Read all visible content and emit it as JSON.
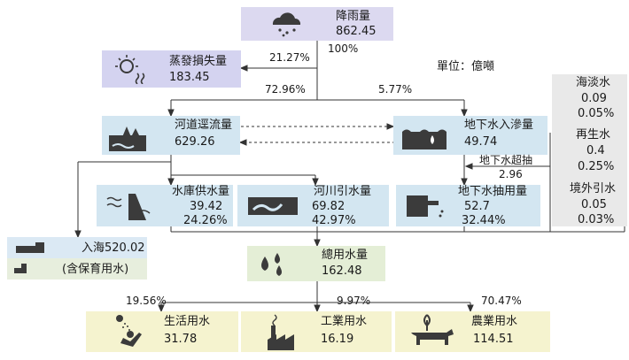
{
  "unit": "單位：億噸",
  "colors": {
    "rain": "#dcd9f0",
    "evap": "#d4d3f0",
    "blue": "#d3e6f1",
    "ground": "#d3e6f1",
    "gray": "#e9e9e9",
    "sea": "#dbe9f4",
    "sea2": "#e7eedd",
    "total": "#e4eed6",
    "use": "#f5f3cf",
    "icon": "#3b3b3b"
  },
  "nodes": {
    "rainfall": {
      "label": "降雨量",
      "value": "862.45",
      "icon": "rain-cloud-icon"
    },
    "evaporation": {
      "label": "蒸發損失量",
      "value": "183.45",
      "icon": "sun-steam-icon"
    },
    "runoff": {
      "label": "河道逕流量",
      "value": "629.26",
      "icon": "river-trees-icon"
    },
    "infiltration": {
      "label": "地下水入滲量",
      "value": "49.74",
      "icon": "groundwater-drop-icon"
    },
    "desalination": {
      "label": "海淡水",
      "value": "0.09",
      "pct": "0.05%"
    },
    "recycled": {
      "label": "再生水",
      "value": "0.4",
      "pct": "0.25%"
    },
    "imported": {
      "label": "境外引水",
      "value": "0.05",
      "pct": "0.03%"
    },
    "reservoir": {
      "label": "水庫供水量",
      "value": "39.42",
      "pct": "24.26%",
      "icon": "dam-icon"
    },
    "river_intake": {
      "label": "河川引水量",
      "value": "69.82",
      "pct": "42.97%",
      "icon": "river-icon"
    },
    "groundwater_pump": {
      "label": "地下水抽用量",
      "value": "52.7",
      "pct": "32.44%",
      "icon": "pump-icon"
    },
    "to_sea": {
      "label": "入海520.02",
      "note": "(含保育用水)",
      "icon": "sea-icon"
    },
    "total_use": {
      "label": "總用水量",
      "value": "162.48",
      "icon": "drops-icon"
    },
    "domestic": {
      "label": "生活用水",
      "value": "31.78",
      "pct": "19.56%",
      "icon": "shower-icon"
    },
    "industrial": {
      "label": "工業用水",
      "value": "16.19",
      "pct": "9.97%",
      "icon": "factory-icon"
    },
    "agricultural": {
      "label": "農業用水",
      "value": "114.51",
      "pct": "70.47%",
      "icon": "cow-plant-icon"
    }
  },
  "flows": {
    "rain_pct": "100%",
    "evap_pct": "21.27%",
    "runoff_pct": "72.96%",
    "infil_pct": "5.77%",
    "overdraft_label": "地下水超抽",
    "overdraft_value": "2.96"
  }
}
